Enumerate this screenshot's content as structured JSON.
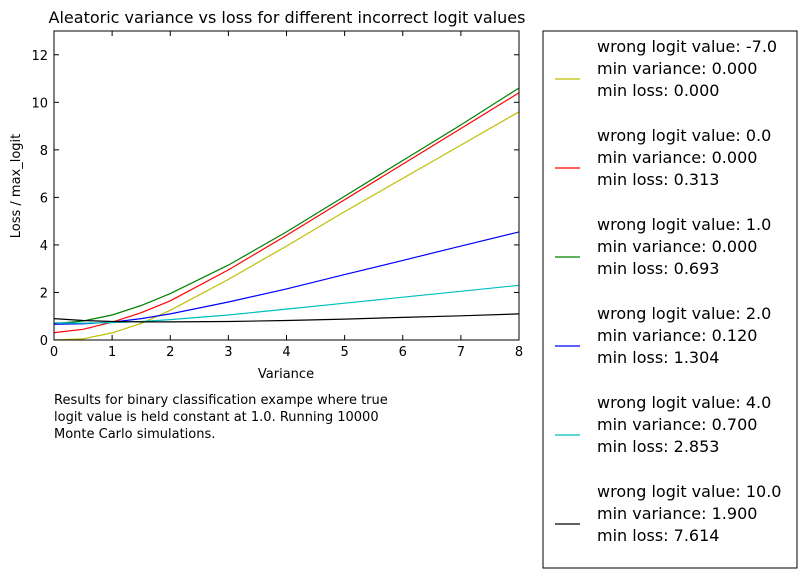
{
  "chart_data": {
    "type": "line",
    "title": "Aleatoric variance vs loss for different incorrect logit values",
    "xlabel": "Variance",
    "ylabel": "Loss / max_logit",
    "xlim": [
      0,
      8
    ],
    "ylim": [
      0,
      13
    ],
    "xticks": [
      0,
      1,
      2,
      3,
      4,
      5,
      6,
      7,
      8
    ],
    "yticks": [
      0,
      2,
      4,
      6,
      8,
      10,
      12
    ],
    "grid": false,
    "legend_position": "outside-right",
    "series": [
      {
        "name": "wrong logit value: -7.0",
        "legend_lines": [
          "wrong logit value: -7.0",
          "min variance: 0.000",
          "min loss: 0.000"
        ],
        "color": "#bfbf00",
        "x": [
          0,
          0.5,
          1,
          1.5,
          2,
          3,
          4,
          5,
          6,
          7,
          8
        ],
        "y": [
          0.0,
          0.05,
          0.3,
          0.7,
          1.25,
          2.55,
          3.95,
          5.4,
          6.8,
          8.2,
          9.6
        ]
      },
      {
        "name": "wrong logit value: 0.0",
        "legend_lines": [
          "wrong logit value: 0.0",
          "min variance: 0.000",
          "min loss: 0.313"
        ],
        "color": "#ff0000",
        "x": [
          0,
          0.5,
          1,
          1.5,
          2,
          3,
          4,
          5,
          6,
          7,
          8
        ],
        "y": [
          0.31,
          0.45,
          0.75,
          1.15,
          1.65,
          2.95,
          4.4,
          5.9,
          7.4,
          8.9,
          10.4
        ]
      },
      {
        "name": "wrong logit value: 1.0",
        "legend_lines": [
          "wrong logit value: 1.0",
          "min variance: 0.000",
          "min loss: 0.693"
        ],
        "color": "#008000",
        "x": [
          0,
          0.5,
          1,
          1.5,
          2,
          3,
          4,
          5,
          6,
          7,
          8
        ],
        "y": [
          0.69,
          0.8,
          1.05,
          1.45,
          1.95,
          3.15,
          4.55,
          6.05,
          7.55,
          9.05,
          10.6
        ]
      },
      {
        "name": "wrong logit value: 2.0",
        "legend_lines": [
          "wrong logit value: 2.0",
          "min variance: 0.120",
          "min loss: 1.304"
        ],
        "color": "#0000ff",
        "x": [
          0,
          0.5,
          1,
          1.5,
          2,
          3,
          4,
          5,
          6,
          7,
          8
        ],
        "y": [
          0.66,
          0.68,
          0.75,
          0.9,
          1.1,
          1.6,
          2.15,
          2.75,
          3.35,
          3.95,
          4.55
        ]
      },
      {
        "name": "wrong logit value: 4.0",
        "legend_lines": [
          "wrong logit value: 4.0",
          "min variance: 0.700",
          "min loss: 2.853"
        ],
        "color": "#00bfbf",
        "x": [
          0,
          0.5,
          1,
          1.5,
          2,
          3,
          4,
          5,
          6,
          7,
          8
        ],
        "y": [
          0.72,
          0.71,
          0.73,
          0.78,
          0.86,
          1.05,
          1.3,
          1.55,
          1.8,
          2.05,
          2.3
        ]
      },
      {
        "name": "wrong logit value: 10.0",
        "legend_lines": [
          "wrong logit value: 10.0",
          "min variance: 1.900",
          "min loss: 7.614"
        ],
        "color": "#000000",
        "x": [
          0,
          0.5,
          1,
          1.5,
          2,
          3,
          4,
          5,
          6,
          7,
          8
        ],
        "y": [
          0.9,
          0.82,
          0.78,
          0.76,
          0.76,
          0.78,
          0.82,
          0.88,
          0.95,
          1.02,
          1.1
        ]
      }
    ],
    "annotation": [
      "Results for binary classification exampe where true",
      "logit value is held constant at 1.0. Running 10000",
      "Monte Carlo simulations."
    ]
  }
}
